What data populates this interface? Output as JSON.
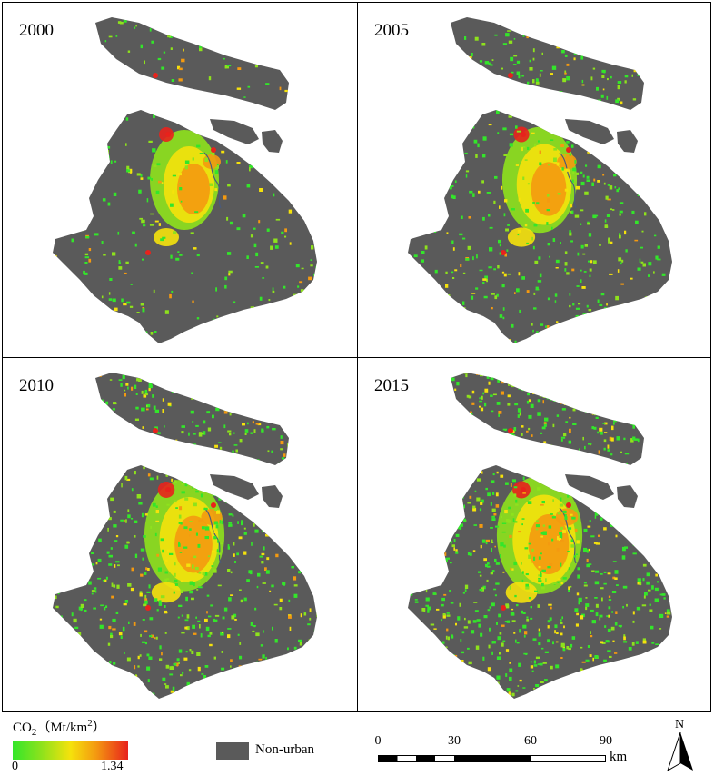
{
  "panels": [
    {
      "year": "2000"
    },
    {
      "year": "2005"
    },
    {
      "year": "2010"
    },
    {
      "year": "2015"
    }
  ],
  "legend": {
    "title_main": "CO",
    "title_sub": "2",
    "title_unit": "（Mt/km",
    "title_sup": "2",
    "title_close": "）",
    "min": "0",
    "max": "1.34",
    "colors": [
      "#33e62a",
      "#8ee21c",
      "#f5e20c",
      "#f49a10",
      "#e8221c"
    ]
  },
  "non_urban": {
    "label": "Non-urban",
    "color": "#5a5a5a"
  },
  "scale_bar": {
    "ticks": [
      "0",
      "30",
      "60",
      "90"
    ],
    "unit": "km"
  },
  "north_arrow": {
    "label": "N"
  }
}
